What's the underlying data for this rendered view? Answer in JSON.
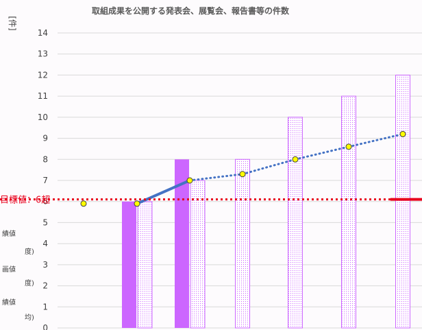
{
  "chart_data": {
    "type": "bar",
    "title": "取組成果を公開する発表会、展覧会、報告書等の件数",
    "ylabel": "[件]",
    "ylim": [
      0,
      14
    ],
    "yticks": [
      "0",
      "1",
      "2",
      "3",
      "4",
      "5",
      "6",
      "7",
      "8",
      "9",
      "10",
      "11",
      "12",
      "13",
      "14"
    ],
    "grid": true,
    "actual_values": [
      null,
      6,
      8,
      null,
      null,
      null,
      null
    ],
    "plan_values": [
      null,
      6,
      7,
      8,
      10,
      11,
      12
    ],
    "line_points": [
      5.9,
      5.9,
      7.0,
      7.3,
      8.0,
      8.6,
      9.2
    ],
    "line_solid_until": 2,
    "target": {
      "label": "目標値：6超",
      "value": 6.1
    },
    "legend_fragments": [
      "績値",
      "度)",
      "画値",
      "度)",
      "績値",
      "均)"
    ],
    "colors": {
      "actual": "#cc66ff",
      "plan_stroke": "#cc66ff",
      "line": "#4472c4",
      "marker_fill": "#ffff00",
      "target": "#e8001c"
    }
  }
}
